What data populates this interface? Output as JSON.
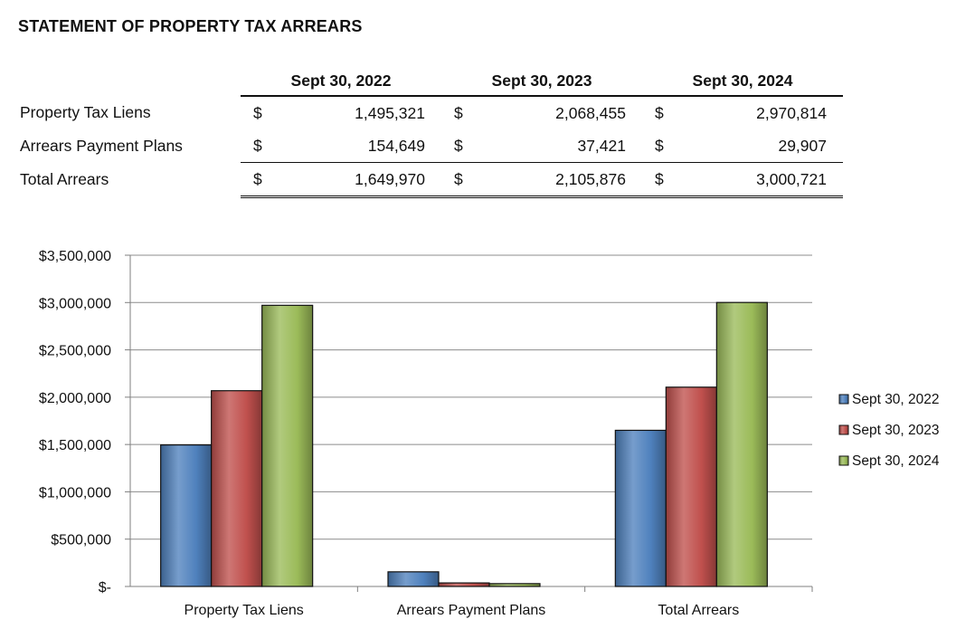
{
  "title": "STATEMENT OF PROPERTY TAX ARREARS",
  "table": {
    "headers": [
      "Sept 30, 2022",
      "Sept 30, 2023",
      "Sept 30, 2024"
    ],
    "currency": "$",
    "rows": [
      {
        "label": "Property Tax Liens",
        "values": [
          "1,495,321",
          "2,068,455",
          "2,970,814"
        ]
      },
      {
        "label": "Arrears Payment Plans",
        "values": [
          "154,649",
          "37,421",
          "29,907"
        ]
      },
      {
        "label": "Total Arrears",
        "values": [
          "1,649,970",
          "2,105,876",
          "3,000,721"
        ]
      }
    ]
  },
  "chart_data": {
    "type": "bar",
    "title": "",
    "xlabel": "",
    "ylabel": "",
    "categories": [
      "Property Tax Liens",
      "Arrears Payment Plans",
      "Total Arrears"
    ],
    "series": [
      {
        "name": "Sept 30, 2022",
        "color": "#4F81BD",
        "values": [
          1495321,
          154649,
          1649970
        ]
      },
      {
        "name": "Sept 30, 2023",
        "color": "#C0504D",
        "values": [
          2068455,
          37421,
          2105876
        ]
      },
      {
        "name": "Sept 30, 2024",
        "color": "#9BBB59",
        "values": [
          2970814,
          29907,
          3000721
        ]
      }
    ],
    "ylim": [
      0,
      3500000
    ],
    "yticks": [
      0,
      500000,
      1000000,
      1500000,
      2000000,
      2500000,
      3000000,
      3500000
    ],
    "ytick_labels": [
      "$-",
      "$500,000",
      "$1,000,000",
      "$1,500,000",
      "$2,000,000",
      "$2,500,000",
      "$3,000,000",
      "$3,500,000"
    ],
    "grid": true,
    "legend": "right"
  }
}
